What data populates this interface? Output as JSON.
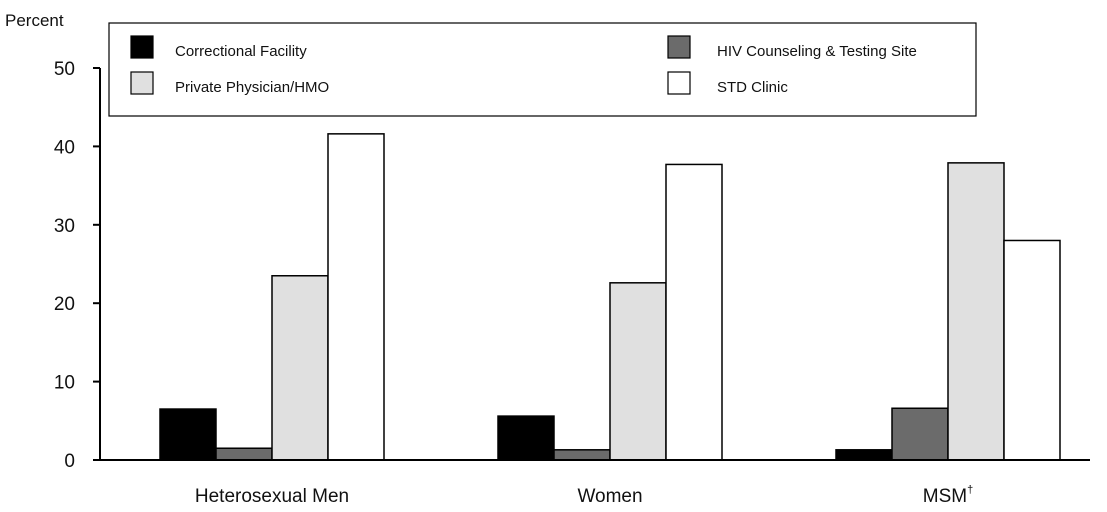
{
  "chart_data": {
    "type": "bar",
    "ylabel": "Percent",
    "ylim": [
      0,
      50
    ],
    "yticks": [
      "0",
      "10",
      "20",
      "30",
      "40",
      "50"
    ],
    "categories": [
      "Heterosexual Men",
      "Women",
      "MSM"
    ],
    "category_superscripts": [
      "",
      "",
      "†"
    ],
    "series": [
      {
        "name": "Correctional Facility",
        "color": "#000000",
        "values": [
          6.5,
          5.6,
          1.3
        ]
      },
      {
        "name": "HIV Counseling & Testing Site",
        "color": "#6b6b6b",
        "values": [
          1.5,
          1.3,
          6.6
        ]
      },
      {
        "name": "Private Physician/HMO",
        "color": "#e0e0e0",
        "values": [
          23.5,
          22.6,
          37.9
        ]
      },
      {
        "name": "STD Clinic",
        "color": "#ffffff",
        "values": [
          41.6,
          37.7,
          28.0
        ]
      }
    ],
    "legend_position": "top",
    "grid": false
  }
}
